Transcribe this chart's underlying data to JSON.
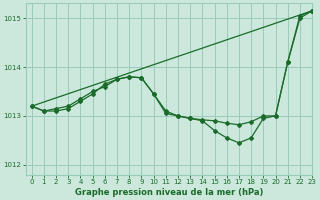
{
  "title": "Graphe pression niveau de la mer (hPa)",
  "background_color": "#cce8dc",
  "grid_color": "#99ccb8",
  "line_color": "#1a6b2a",
  "ylim": [
    1011.8,
    1015.3
  ],
  "xlim": [
    -0.5,
    23
  ],
  "yticks": [
    1012,
    1013,
    1014,
    1015
  ],
  "xticks": [
    0,
    1,
    2,
    3,
    4,
    5,
    6,
    7,
    8,
    9,
    10,
    11,
    12,
    13,
    14,
    15,
    16,
    17,
    18,
    19,
    20,
    21,
    22,
    23
  ],
  "series": [
    {
      "x": [
        0,
        23
      ],
      "y": [
        1013.2,
        1015.15
      ],
      "marker": false
    },
    {
      "x": [
        0,
        1,
        2,
        3,
        4,
        5,
        6,
        7,
        8,
        9,
        10,
        11,
        12,
        13,
        14,
        15,
        16,
        17,
        18,
        19,
        20,
        21,
        22,
        23
      ],
      "y": [
        1013.2,
        1013.1,
        1013.15,
        1013.2,
        1013.35,
        1013.5,
        1013.6,
        1013.75,
        1013.8,
        1013.78,
        1013.45,
        1013.05,
        1013.0,
        1012.95,
        1012.92,
        1012.9,
        1012.85,
        1012.82,
        1012.88,
        1013.0,
        1013.0,
        1014.1,
        1015.05,
        1015.15
      ],
      "marker": true
    },
    {
      "x": [
        0,
        1,
        2,
        3,
        4,
        5,
        6,
        7,
        8,
        9,
        10,
        11,
        12,
        13,
        14,
        15,
        16,
        17,
        18,
        19,
        20,
        21,
        22,
        23
      ],
      "y": [
        1013.2,
        1013.1,
        1013.1,
        1013.15,
        1013.3,
        1013.45,
        1013.65,
        1013.75,
        1013.8,
        1013.78,
        1013.45,
        1013.1,
        1013.0,
        1012.95,
        1012.9,
        1012.7,
        1012.55,
        1012.45,
        1012.55,
        1012.95,
        1013.0,
        1014.1,
        1015.0,
        1015.15
      ],
      "marker": true
    }
  ]
}
